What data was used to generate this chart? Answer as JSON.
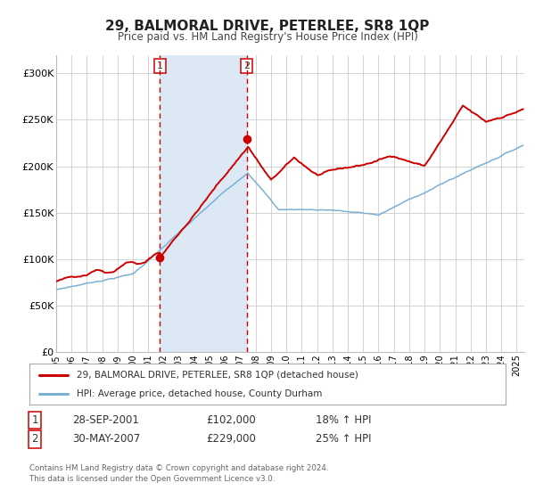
{
  "title": "29, BALMORAL DRIVE, PETERLEE, SR8 1QP",
  "subtitle": "Price paid vs. HM Land Registry's House Price Index (HPI)",
  "ylim": [
    0,
    320000
  ],
  "xlim_start": 1995.0,
  "xlim_end": 2025.5,
  "background_color": "#ffffff",
  "plot_bg_color": "#ffffff",
  "grid_color": "#cccccc",
  "line1_color": "#cc0000",
  "line2_color": "#7bafd4",
  "marker_color": "#cc0000",
  "sale1_x": 2001.747,
  "sale1_y": 102000,
  "sale2_x": 2007.413,
  "sale2_y": 229000,
  "shade_color": "#dce9f5",
  "vline_color": "#cc0000",
  "legend_label1": "29, BALMORAL DRIVE, PETERLEE, SR8 1QP (detached house)",
  "legend_label2": "HPI: Average price, detached house, County Durham",
  "table_row1": [
    "1",
    "28-SEP-2001",
    "£102,000",
    "18% ↑ HPI"
  ],
  "table_row2": [
    "2",
    "30-MAY-2007",
    "£229,000",
    "25% ↑ HPI"
  ],
  "footer1": "Contains HM Land Registry data © Crown copyright and database right 2024.",
  "footer2": "This data is licensed under the Open Government Licence v3.0.",
  "ytick_labels": [
    "£0",
    "£50K",
    "£100K",
    "£150K",
    "£200K",
    "£250K",
    "£300K"
  ],
  "ytick_values": [
    0,
    50000,
    100000,
    150000,
    200000,
    250000,
    300000
  ],
  "xtick_years": [
    1995,
    1996,
    1997,
    1998,
    1999,
    2000,
    2001,
    2002,
    2003,
    2004,
    2005,
    2006,
    2007,
    2008,
    2009,
    2010,
    2011,
    2012,
    2013,
    2014,
    2015,
    2016,
    2017,
    2018,
    2019,
    2020,
    2021,
    2022,
    2023,
    2024,
    2025
  ]
}
